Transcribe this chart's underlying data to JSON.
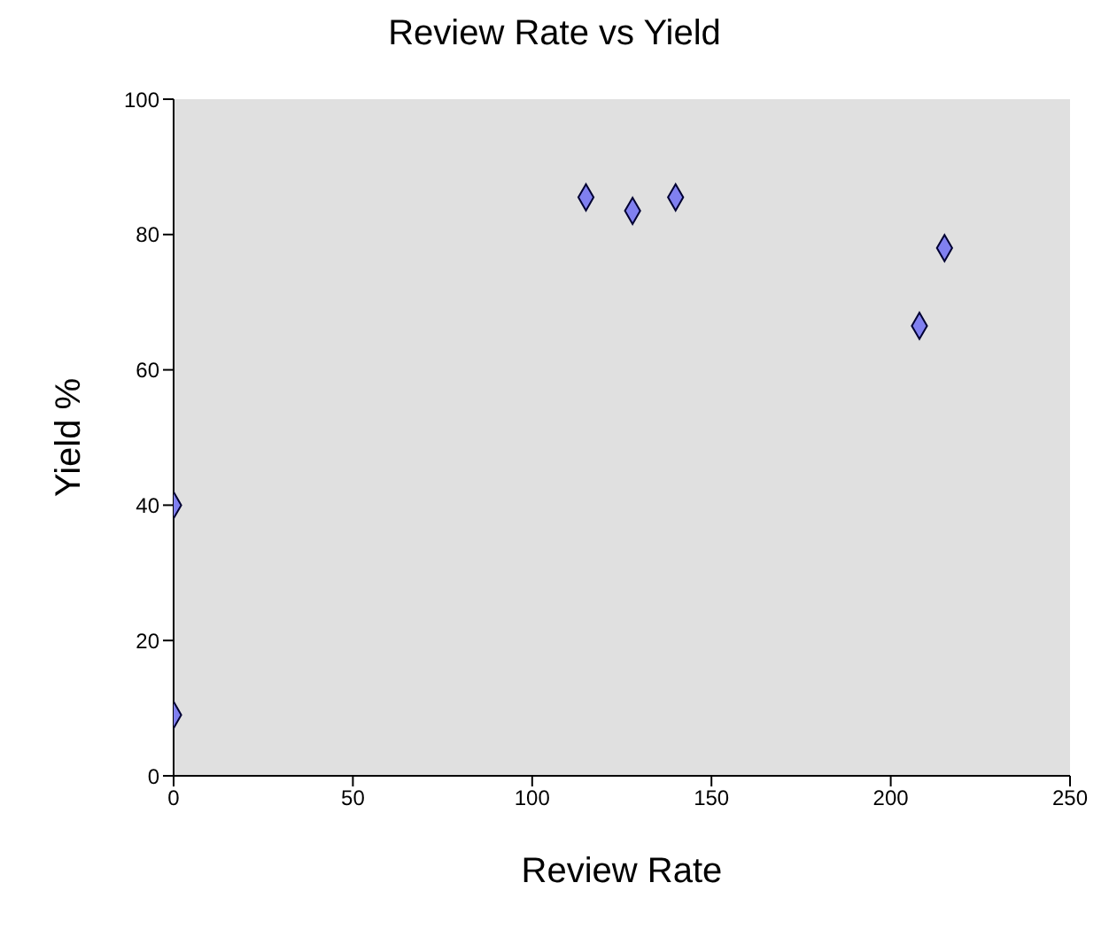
{
  "chart_data": {
    "type": "scatter",
    "title": "Review Rate vs Yield",
    "xlabel": "Review Rate",
    "ylabel": "Yield %",
    "x": [
      0,
      0,
      115,
      128,
      140,
      208,
      215
    ],
    "series": [
      {
        "color": "#8080f0",
        "values": [
          40,
          9,
          85.5,
          83.5,
          85.5,
          66.5,
          78
        ]
      }
    ],
    "xlim": [
      0,
      250
    ],
    "xticks": [
      0,
      50,
      100,
      150,
      200,
      250
    ],
    "ylim": [
      0,
      100
    ],
    "yticks": [
      0,
      20,
      40,
      60,
      80,
      100
    ],
    "grid": false,
    "legend": false,
    "marker": "diamond"
  }
}
